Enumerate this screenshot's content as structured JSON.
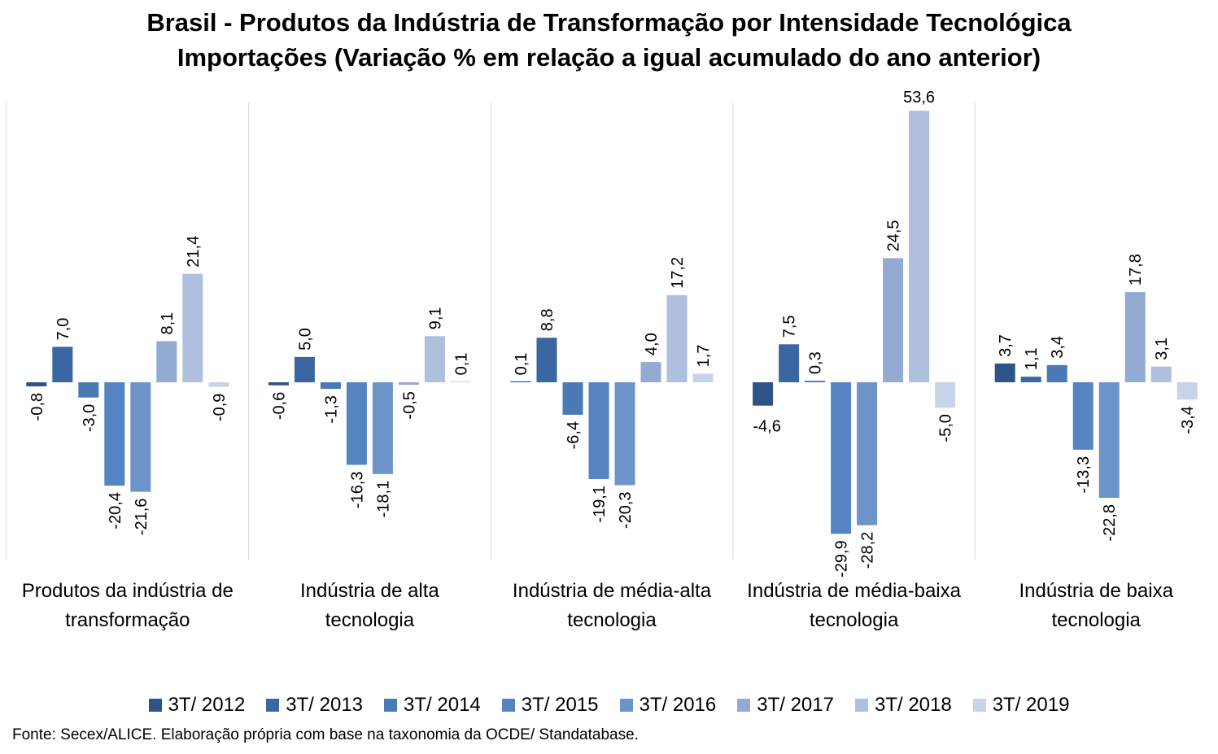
{
  "chart_data": {
    "type": "bar",
    "title": "Brasil - Produtos da Indústria de Transformação por Intensidade Tecnológica",
    "subtitle": "Importações (Variação % em relação a igual acumulado do ano anterior)",
    "categories": [
      [
        "Produtos da indústria de",
        "transformação"
      ],
      [
        "Indústria de alta",
        "tecnologia"
      ],
      [
        "Indústria de média-alta",
        "tecnologia"
      ],
      [
        "Indústria de média-baixa",
        "tecnologia"
      ],
      [
        "Indústria de baixa",
        "tecnologia"
      ]
    ],
    "series": [
      {
        "name": "3T/ 2012",
        "color": "#2e5487",
        "values": [
          -0.8,
          -0.6,
          0.1,
          -4.6,
          3.7
        ]
      },
      {
        "name": "3T/ 2013",
        "color": "#3a67a1",
        "values": [
          7.0,
          5.0,
          8.8,
          7.5,
          1.1
        ]
      },
      {
        "name": "3T/ 2014",
        "color": "#4a7ab6",
        "values": [
          -3.0,
          -1.3,
          -6.4,
          0.3,
          3.4
        ]
      },
      {
        "name": "3T/ 2015",
        "color": "#5584c2",
        "values": [
          -20.4,
          -16.3,
          -19.1,
          -29.9,
          -13.3
        ]
      },
      {
        "name": "3T/ 2016",
        "color": "#6c94c8",
        "values": [
          -21.6,
          -18.1,
          -20.3,
          -28.2,
          -22.8
        ]
      },
      {
        "name": "3T/ 2017",
        "color": "#93abd3",
        "values": [
          8.1,
          -0.5,
          4.0,
          24.5,
          17.8
        ]
      },
      {
        "name": "3T/ 2018",
        "color": "#aec0de",
        "values": [
          21.4,
          9.1,
          17.2,
          53.6,
          3.1
        ]
      },
      {
        "name": "3T/ 2019",
        "color": "#c8d4ea",
        "values": [
          -0.9,
          0.1,
          1.7,
          -5.0,
          -3.4
        ]
      }
    ],
    "value_labels": [
      [
        "-0,8",
        "7,0",
        "-3,0",
        "-20,4",
        "-21,6",
        "8,1",
        "21,4",
        "-0,9"
      ],
      [
        "-0,6",
        "5,0",
        "-1,3",
        "-16,3",
        "-18,1",
        "-0,5",
        "9,1",
        "0,1"
      ],
      [
        "0,1",
        "8,8",
        "-6,4",
        "-19,1",
        "-20,3",
        "4,0",
        "17,2",
        "1,7"
      ],
      [
        "-4,6",
        "7,5",
        "0,3",
        "-29,9",
        "-28,2",
        "24,5",
        "53,6",
        "-5,0"
      ],
      [
        "3,7",
        "1,1",
        "3,4",
        "-13,3",
        "-22,8",
        "17,8",
        "3,1",
        "-3,4"
      ]
    ],
    "ylim": [
      -35,
      56
    ],
    "grid": false,
    "legend_position": "bottom"
  },
  "source": "Fonte: Secex/ALICE. Elaboração própria com base na taxonomia da OCDE/ Standatabase."
}
